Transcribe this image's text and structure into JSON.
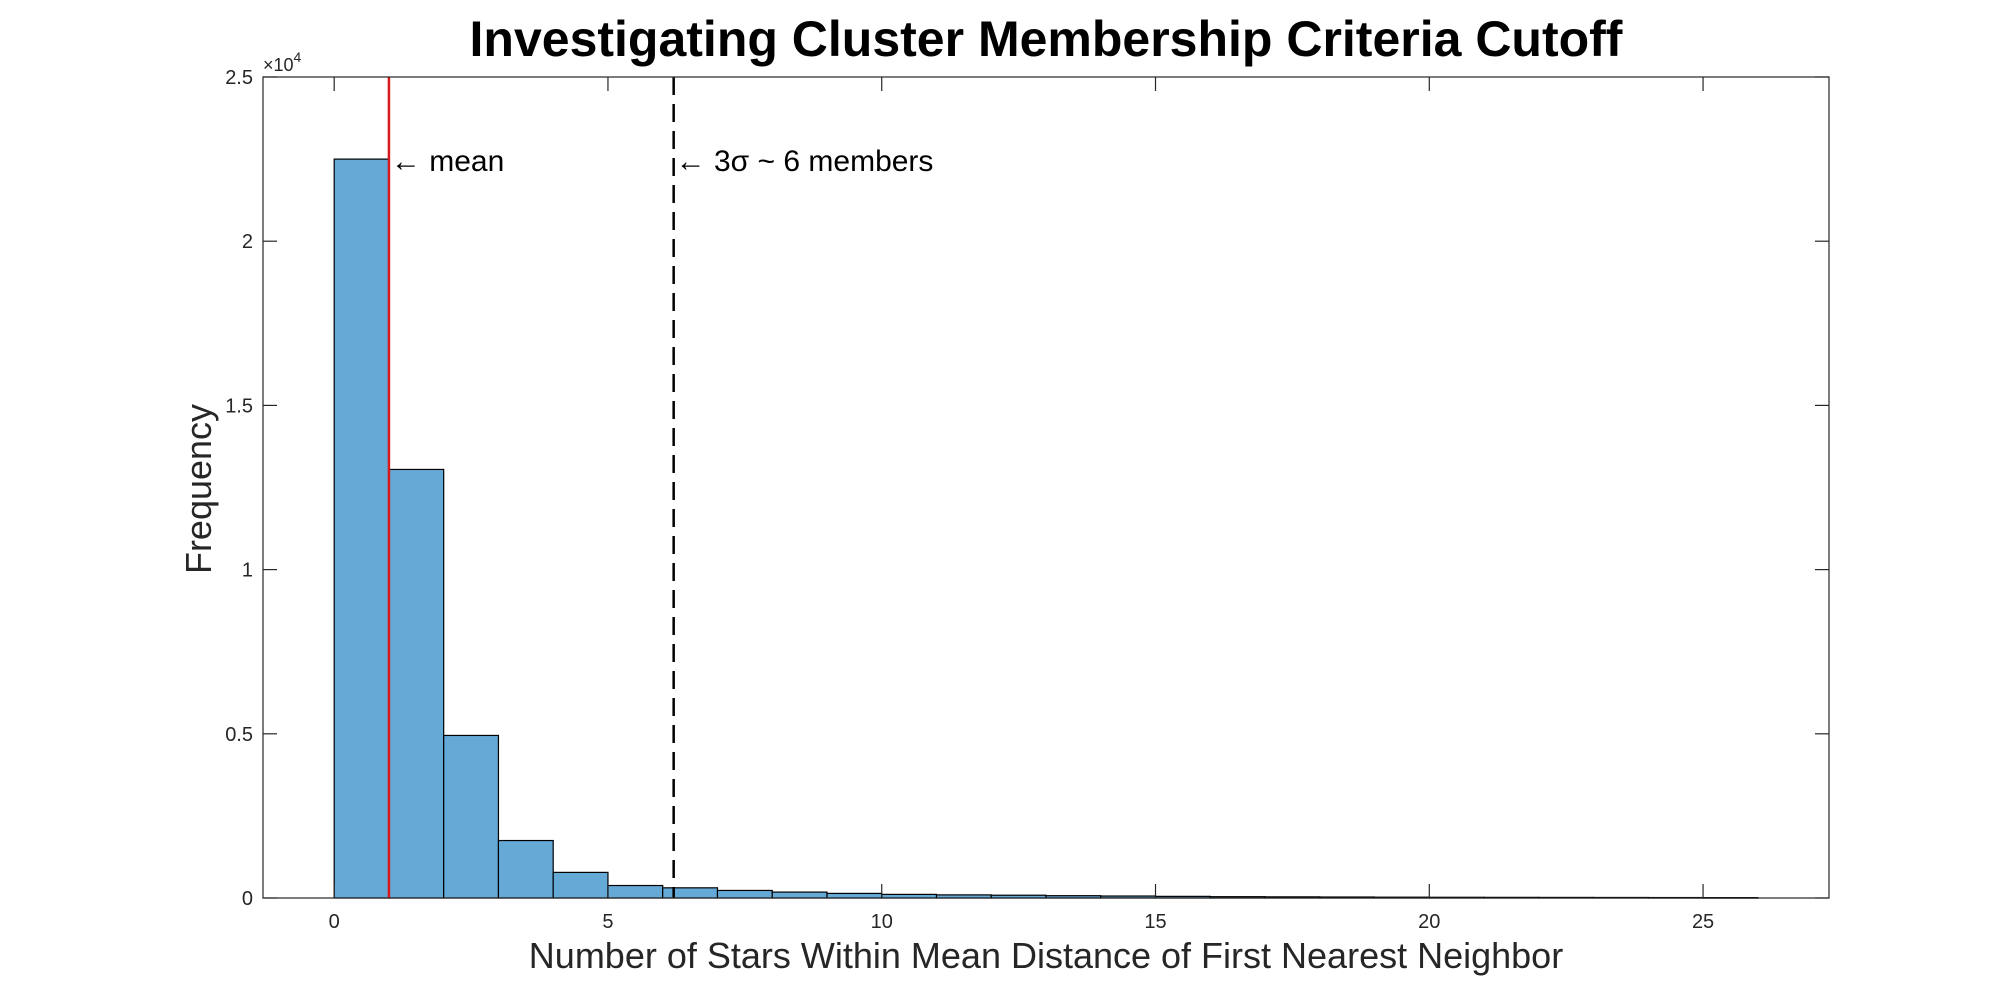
{
  "chart_data": {
    "type": "bar",
    "title": "Investigating Cluster Membership Criteria Cutoff",
    "xlabel": "Number of Stars Within Mean Distance of First Nearest Neighbor",
    "ylabel": "Frequency",
    "xlim": [
      -1.3,
      27.3
    ],
    "ylim": [
      0,
      25000
    ],
    "x_ticks": [
      0,
      5,
      10,
      15,
      20,
      25
    ],
    "x_tick_labels": [
      "0",
      "5",
      "10",
      "15",
      "20",
      "25"
    ],
    "y_ticks": [
      0,
      5000,
      10000,
      15000,
      20000,
      25000
    ],
    "y_tick_labels": [
      "0",
      "0.5",
      "1",
      "1.5",
      "2",
      "2.5"
    ],
    "y_exponent_label": "×10",
    "y_exponent_power": "4",
    "bin_edges": [
      0,
      1,
      2,
      3,
      4,
      5,
      6,
      7,
      8,
      9,
      10,
      11,
      12,
      13,
      14,
      15,
      16,
      17,
      18,
      19,
      20,
      21,
      22,
      23,
      24,
      25,
      26
    ],
    "values": [
      22500,
      13050,
      4950,
      1750,
      780,
      380,
      310,
      230,
      180,
      140,
      110,
      95,
      85,
      70,
      60,
      50,
      40,
      35,
      30,
      25,
      22,
      20,
      18,
      16,
      14,
      12
    ],
    "bar_color": "#65a9d7",
    "bar_edge_color": "#000000",
    "grid": false,
    "vlines": [
      {
        "x": 1.0,
        "color": "#d7191c",
        "style": "solid",
        "label": "← mean"
      },
      {
        "x": 6.2,
        "color": "#000000",
        "style": "dashed",
        "label": "← 3σ ~ 6 members"
      }
    ]
  }
}
